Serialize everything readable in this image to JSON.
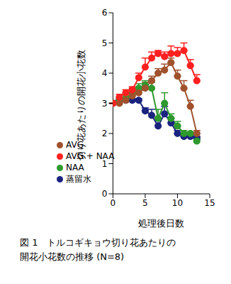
{
  "chart_data": {
    "type": "line",
    "title": "図 1　トルコギキョウ切り花あたりの開花小花数の推移 (N=8)",
    "x_label": "処理後日数",
    "y_label": "切り花あたりの開花小花数",
    "x": [
      0,
      1,
      2,
      3,
      4,
      5,
      6,
      7,
      8,
      9,
      10,
      11,
      12,
      13
    ],
    "series": [
      {
        "name": "蒸留水",
        "color": "#1a237e",
        "marker": "circle",
        "values": [
          3.0,
          3.1,
          3.1,
          3.1,
          3.1,
          2.75,
          2.6,
          2.25,
          2.65,
          2.35,
          2.0,
          1.9,
          1.9,
          1.85
        ],
        "errors": [
          0,
          0.05,
          0.05,
          0.05,
          0.05,
          0.1,
          0.2,
          0.25,
          0.25,
          0.15,
          0.1,
          0.05,
          0.05,
          0.05
        ]
      },
      {
        "name": "NAA",
        "color": "#2e9a2e",
        "marker": "circle",
        "values": [
          3.0,
          3.1,
          3.15,
          3.35,
          3.5,
          3.6,
          3.5,
          2.5,
          3.0,
          2.5,
          2.25,
          2.0,
          2.0,
          1.75
        ],
        "errors": [
          0,
          0.05,
          0.1,
          0.15,
          0.15,
          0.15,
          0.2,
          0.3,
          0.35,
          0.15,
          0.15,
          0.1,
          0.05,
          0.05
        ]
      },
      {
        "name": "AVG",
        "color": "#a0522d",
        "marker": "circle",
        "values": [
          3.0,
          3.0,
          3.1,
          3.25,
          3.35,
          3.5,
          3.75,
          4.0,
          4.1,
          4.35,
          3.9,
          3.5,
          2.9,
          2.0
        ],
        "errors": [
          0,
          0.05,
          0.1,
          0.15,
          0.15,
          0.2,
          0.15,
          0.15,
          0.2,
          0.15,
          0.2,
          0.25,
          0.2,
          0.1
        ]
      },
      {
        "name": "AVG + NAA",
        "color": "#ff2020",
        "marker": "circle",
        "values": [
          3.0,
          3.2,
          3.35,
          3.45,
          3.85,
          4.2,
          4.5,
          4.65,
          4.55,
          4.65,
          4.65,
          4.75,
          4.25,
          3.75
        ],
        "errors": [
          0,
          0.1,
          0.1,
          0.1,
          0.15,
          0.3,
          0.2,
          0.1,
          0.15,
          0.25,
          0.2,
          0.25,
          0.2,
          0.2
        ]
      }
    ],
    "xlim": [
      0,
      15
    ],
    "xticks": [
      0,
      5,
      10,
      15
    ],
    "ylim": [
      0,
      6
    ],
    "yticks": [
      0,
      1,
      2,
      3,
      4,
      5,
      6
    ],
    "grid": false,
    "legend": "lower left"
  }
}
